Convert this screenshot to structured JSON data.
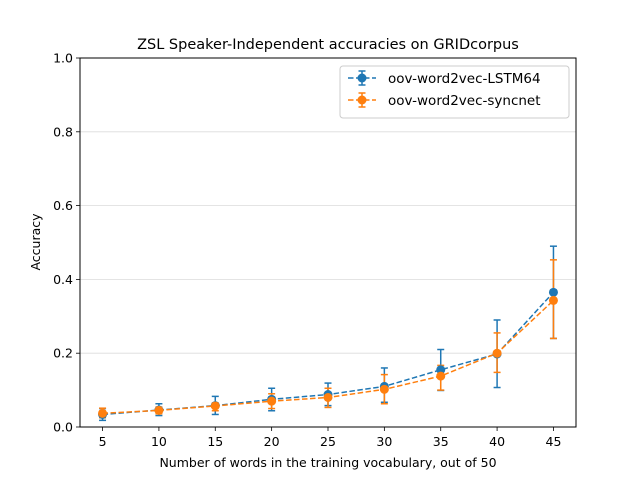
{
  "chart_data": {
    "type": "line",
    "title": "ZSL Speaker-Independent accuracies on GRIDcorpus",
    "xlabel": "Number of words in the training vocabulary, out of 50",
    "ylabel": "Accuracy",
    "x": [
      5,
      10,
      15,
      20,
      25,
      30,
      35,
      40,
      45
    ],
    "xticks": [
      "5",
      "10",
      "15",
      "20",
      "25",
      "30",
      "35",
      "40",
      "45"
    ],
    "xlim": [
      3,
      47
    ],
    "ylim": [
      0,
      1.0
    ],
    "yticks": [
      "0.0",
      "0.2",
      "0.4",
      "0.6",
      "0.8",
      "1.0"
    ],
    "grid": "horizontal",
    "legend_position": "top-right",
    "series": [
      {
        "name": "oov-word2vec-LSTM64",
        "color": "#1f77b4",
        "values": [
          0.034,
          0.046,
          0.058,
          0.075,
          0.088,
          0.11,
          0.155,
          0.198,
          0.365
        ],
        "err_low": [
          0.018,
          0.031,
          0.034,
          0.044,
          0.058,
          0.067,
          0.099,
          0.107,
          0.24
        ],
        "err_high": [
          0.05,
          0.063,
          0.083,
          0.105,
          0.119,
          0.16,
          0.21,
          0.29,
          0.49
        ]
      },
      {
        "name": "oov-word2vec-syncnet",
        "color": "#ff7f0e",
        "values": [
          0.037,
          0.045,
          0.057,
          0.07,
          0.08,
          0.102,
          0.138,
          0.2,
          0.343
        ],
        "err_low": [
          0.025,
          0.036,
          0.044,
          0.05,
          0.053,
          0.063,
          0.1,
          0.148,
          0.24
        ],
        "err_high": [
          0.051,
          0.054,
          0.065,
          0.09,
          0.105,
          0.142,
          0.167,
          0.255,
          0.453
        ]
      }
    ]
  }
}
